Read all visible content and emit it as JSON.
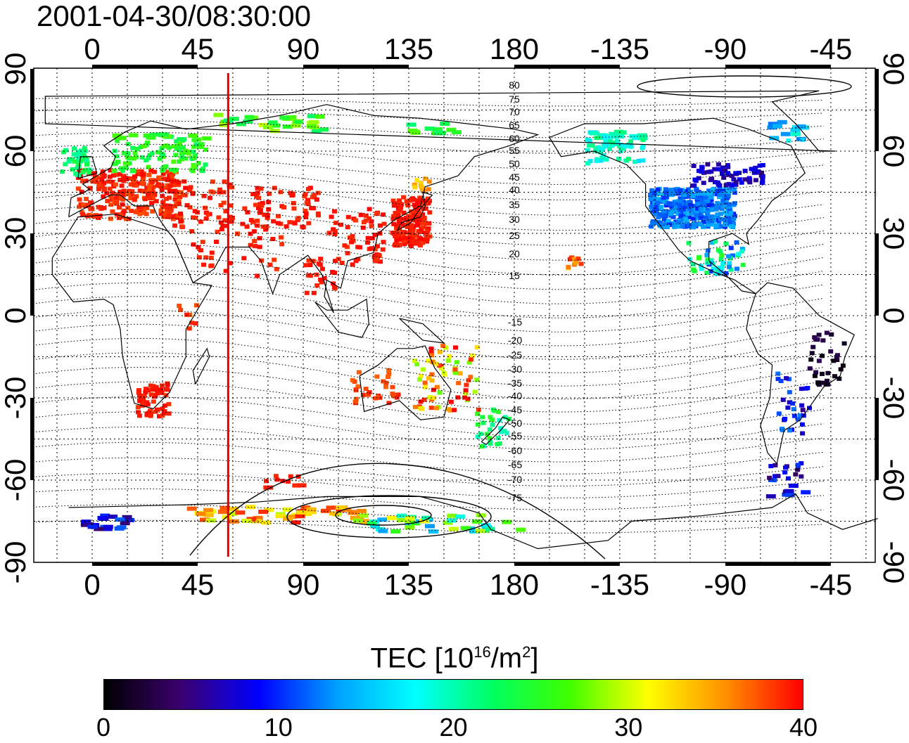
{
  "title": "2001-04-30/08:30:00",
  "colors": {
    "tec_scale": [
      "#000000",
      "#3b0070",
      "#0000ff",
      "#00a0ff",
      "#00ffff",
      "#00ff60",
      "#40ff00",
      "#ffff00",
      "#ff9000",
      "#ff0000"
    ],
    "marker_line": "#e00000"
  },
  "map": {
    "top_ticks": [
      "0",
      "45",
      "90",
      "135",
      "180",
      "-135",
      "-90",
      "-45"
    ],
    "bottom_ticks": [
      "0",
      "45",
      "90",
      "135",
      "180",
      "-135",
      "-90",
      "-45"
    ],
    "left_ticks": [
      "90",
      "60",
      "30",
      "0",
      "-30",
      "-60",
      "-90"
    ],
    "right_ticks": [
      "90",
      "60",
      "30",
      "0",
      "-30",
      "-60",
      "-90"
    ],
    "marker_longitude": 58,
    "contour_labels_north": [
      "80",
      "75",
      "70",
      "65",
      "60",
      "55",
      "50",
      "45",
      "40",
      "35",
      "30",
      "25",
      "20",
      "15"
    ],
    "contour_labels_south": [
      "-15",
      "-20",
      "-25",
      "-30",
      "-35",
      "-40",
      "-45",
      "-50",
      "-55",
      "-60",
      "-65",
      "-70",
      "-75"
    ]
  },
  "colorbar": {
    "title": "TEC  [10",
    "title_exp": "16",
    "title_unit": "/m",
    "title_unit_exp": "2",
    "title_close": "]",
    "tick_labels": [
      "0",
      "10",
      "20",
      "30",
      "40"
    ]
  }
}
